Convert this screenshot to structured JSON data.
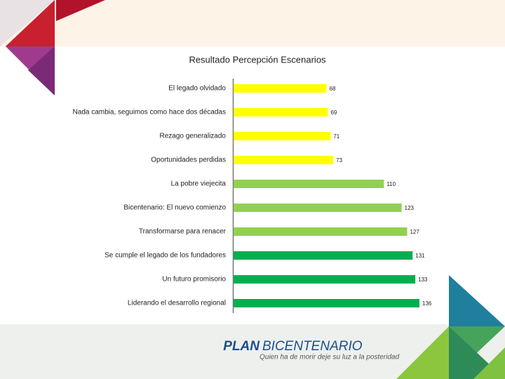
{
  "chart_data": {
    "type": "bar",
    "orientation": "horizontal",
    "title": "Resultado Percepción Escenarios",
    "categories": [
      "El legado olvidado",
      "Nada cambia, seguimos como hace dos décadas",
      "Rezago generalizado",
      "Oportunidades perdidas",
      "La pobre viejecita",
      "Bicentenario: El nuevo comienzo",
      "Transformarse para renacer",
      "Se cumple el legado de los fundadores",
      "Un futuro promisorio",
      "Liderando el desarrollo regional"
    ],
    "values": [
      68,
      69,
      71,
      73,
      110,
      123,
      127,
      131,
      133,
      136
    ],
    "colors": [
      "#ffff00",
      "#ffff00",
      "#ffff00",
      "#ffff00",
      "#92d050",
      "#92d050",
      "#92d050",
      "#00b050",
      "#00b050",
      "#00b050"
    ]
  },
  "footer": {
    "logo_plan": "PLAN",
    "logo_name": "BICENTENARIO",
    "tagline": "Quien ha de morir deje su luz a la posteridad"
  }
}
